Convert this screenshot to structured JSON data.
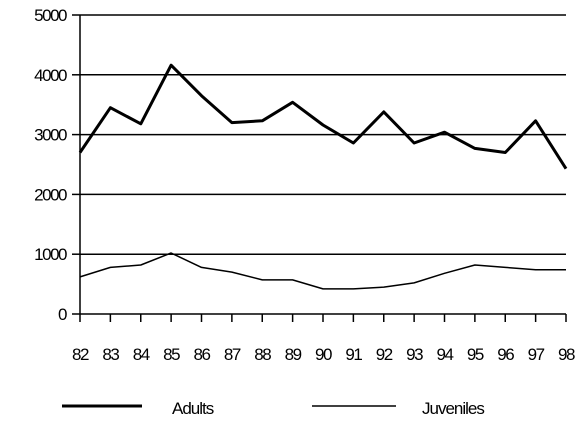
{
  "chart_data": {
    "type": "line",
    "title": "",
    "xlabel": "",
    "ylabel": "",
    "x": [
      "82",
      "83",
      "84",
      "85",
      "86",
      "87",
      "88",
      "89",
      "90",
      "91",
      "92",
      "93",
      "94",
      "95",
      "96",
      "97",
      "98"
    ],
    "ylim": [
      0,
      5000
    ],
    "yticks": [
      0,
      1000,
      2000,
      3000,
      4000,
      5000
    ],
    "ytick_labels": [
      "0",
      "1000",
      "2000",
      "3000",
      "4000",
      "5000"
    ],
    "grid": "horizontal",
    "legend_position": "bottom",
    "series": [
      {
        "name": "Adults",
        "color": "#000000",
        "line_style": "thick",
        "values": [
          2700,
          3450,
          3180,
          4160,
          3650,
          3200,
          3230,
          3540,
          3160,
          2860,
          3380,
          2860,
          3040,
          2770,
          2700,
          3230,
          2430
        ]
      },
      {
        "name": "Juveniles",
        "color": "#000000",
        "line_style": "thin",
        "values": [
          620,
          780,
          820,
          1020,
          780,
          700,
          570,
          570,
          420,
          420,
          450,
          520,
          680,
          820,
          780,
          740,
          740
        ]
      }
    ]
  }
}
